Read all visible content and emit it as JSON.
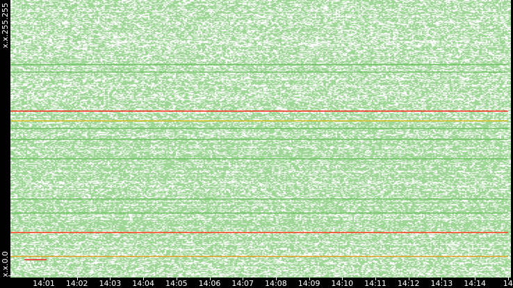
{
  "chart_data": {
    "type": "scatter",
    "title": "",
    "xlabel": "",
    "ylabel": "",
    "x_range": [
      "14:00",
      "14:15"
    ],
    "x_ticks": [
      "14:01",
      "14:02",
      "14:03",
      "14:04",
      "14:05",
      "14:06",
      "14:07",
      "14:08",
      "14:09",
      "14:10",
      "14:11",
      "14:12",
      "14:13",
      "14:14",
      "14"
    ],
    "y_range": [
      "x.x.0.0",
      "x.x.255.255"
    ],
    "y_tick_labels": {
      "bottom": "x.x.0.0",
      "top": "x.x.255.255"
    },
    "grid": false,
    "legend": "none",
    "point_density": 0.55,
    "highlighted_rows": [
      {
        "address": "x.x.153.x",
        "color": "#ff2a1a",
        "start": "14:00",
        "end": "14:15"
      },
      {
        "address": "x.x.41.x",
        "color": "#ff3a1a",
        "start": "14:00",
        "end": "14:15"
      },
      {
        "address": "x.x.144.x",
        "color": "#d8c020",
        "start": "14:00",
        "end": "14:15"
      },
      {
        "address": "x.x.19.x",
        "color": "#e0a020",
        "start": "14:00",
        "end": "14:15"
      },
      {
        "address": "x.x.16.x",
        "color": "#ff2020",
        "start": "14:00:25",
        "end": "14:01:05"
      },
      {
        "address": "x.x.196.x",
        "color": "#6cc060",
        "start": "14:00",
        "end": "14:15"
      },
      {
        "address": "x.x.189.x",
        "color": "#6cc060",
        "start": "14:00",
        "end": "14:15"
      },
      {
        "address": "x.x.137.x",
        "color": "#6cc060",
        "start": "14:00",
        "end": "14:15"
      },
      {
        "address": "x.x.127.x",
        "color": "#6cc060",
        "start": "14:00",
        "end": "14:15"
      },
      {
        "address": "x.x.109.x",
        "color": "#6cc060",
        "start": "14:00",
        "end": "14:15"
      },
      {
        "address": "x.x.72.x",
        "color": "#6cc060",
        "start": "14:00",
        "end": "14:15"
      },
      {
        "address": "x.x.59.x",
        "color": "#6cc060",
        "start": "14:00",
        "end": "14:15"
      }
    ],
    "colors": {
      "point": "#9ed696",
      "background": "#ffffff",
      "axis": "#000000"
    }
  }
}
